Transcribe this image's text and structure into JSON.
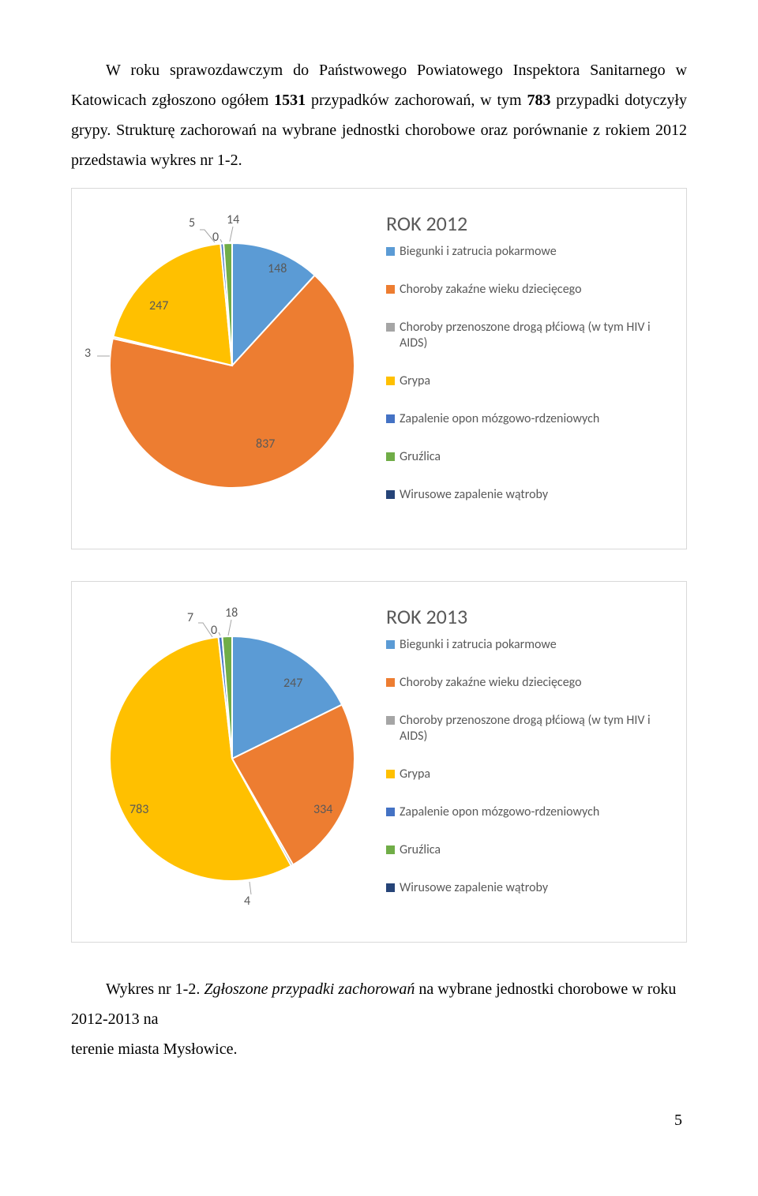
{
  "paragraph": {
    "line1a": "W roku sprawozdawczym do Państwowego Powiatowego Inspektora Sanitarnego",
    "line2a": "w Katowicach zgłoszono ogółem ",
    "bold1": "1531",
    "line2b": "  przypadków zachorowań, w tym ",
    "bold2": "783",
    "line2c": " przypadki",
    "line3": "dotyczyły grypy.  Strukturę  zachorowań na wybrane jednostki chorobowe oraz porównanie",
    "line4": "z rokiem 2012 przedstawia wykres nr 1-2."
  },
  "chart1": {
    "title": "ROK 2012",
    "type": "pie",
    "background_color": "#ffffff",
    "border_color": "#d9d9d9",
    "label_color": "#595959",
    "label_fontsize": 16,
    "title_fontsize": 26,
    "slices": [
      {
        "name": "Biegunki i zatrucia pokarmowe",
        "value": 148,
        "color": "#5b9bd5",
        "border": "#ffffff"
      },
      {
        "name": "Choroby zakaźne wieku dziecięcego",
        "value": 837,
        "color": "#ed7d31",
        "border": "#ffffff"
      },
      {
        "name": "Choroby przenoszone drogą płćiową\n(w tym HIV i AIDS)",
        "value": 3,
        "color": "#a5a5a5",
        "border": "#ffffff"
      },
      {
        "name": "Grypa",
        "value": 247,
        "color": "#ffc000",
        "border": "#ffffff"
      },
      {
        "name": "Zapalenie opon mózgowo-\nrdzeniowych",
        "value": 5,
        "color": "#4472c4",
        "border": "#ffffff"
      },
      {
        "name": "Gruźlica",
        "value": 14,
        "color": "#70ad47",
        "border": "#ffffff"
      },
      {
        "name": "Wirusowe zapalenie wątroby",
        "value": 0,
        "color": "#264478",
        "border": "#ffffff"
      }
    ],
    "legend": [
      {
        "color": "#5b9bd5",
        "label": "Biegunki i zatrucia pokarmowe"
      },
      {
        "color": "#ed7d31",
        "label": "Choroby zakaźne wieku dziecięcego"
      },
      {
        "color": "#a5a5a5",
        "label": "Choroby przenoszone drogą płćiową (w tym HIV i AIDS)"
      },
      {
        "color": "#ffc000",
        "label": "Grypa"
      },
      {
        "color": "#4472c4",
        "label": "Zapalenie opon mózgowo-rdzeniowych"
      },
      {
        "color": "#70ad47",
        "label": "Gruźlica"
      },
      {
        "color": "#264478",
        "label": "Wirusowe zapalenie wątroby"
      }
    ]
  },
  "chart2": {
    "title": "ROK 2013",
    "type": "pie",
    "background_color": "#ffffff",
    "border_color": "#d9d9d9",
    "label_color": "#595959",
    "label_fontsize": 16,
    "title_fontsize": 26,
    "slices": [
      {
        "name": "Biegunki i zatrucia pokarmowe",
        "value": 247,
        "color": "#5b9bd5",
        "border": "#ffffff"
      },
      {
        "name": "Choroby zakaźne wieku dziecięcego",
        "value": 334,
        "color": "#ed7d31",
        "border": "#ffffff"
      },
      {
        "name": "Choroby przenoszone drogą płćiową\n(w tym HIV i AIDS)",
        "value": 4,
        "color": "#a5a5a5",
        "border": "#ffffff"
      },
      {
        "name": "Grypa",
        "value": 783,
        "color": "#ffc000",
        "border": "#ffffff"
      },
      {
        "name": "Zapalenie opon mózgowo-\nrdzeniowych",
        "value": 7,
        "color": "#4472c4",
        "border": "#ffffff"
      },
      {
        "name": "Gruźlica",
        "value": 18,
        "color": "#70ad47",
        "border": "#ffffff"
      },
      {
        "name": "Wirusowe zapalenie wątroby",
        "value": 0,
        "color": "#264478",
        "border": "#ffffff"
      }
    ],
    "legend": [
      {
        "color": "#5b9bd5",
        "label": "Biegunki i zatrucia pokarmowe"
      },
      {
        "color": "#ed7d31",
        "label": "Choroby zakaźne wieku dziecięcego"
      },
      {
        "color": "#a5a5a5",
        "label": "Choroby przenoszone drogą płćiową (w tym HIV i AIDS)"
      },
      {
        "color": "#ffc000",
        "label": "Grypa"
      },
      {
        "color": "#4472c4",
        "label": "Zapalenie opon mózgowo-rdzeniowych"
      },
      {
        "color": "#70ad47",
        "label": "Gruźlica"
      },
      {
        "color": "#264478",
        "label": "Wirusowe zapalenie wątroby"
      }
    ]
  },
  "caption": {
    "prefix": "Wykres nr 1-2. ",
    "italic": "Zgłoszone przypadki zachorowań",
    "rest1": " na wybrane jednostki chorobowe w roku 2012-2013 na",
    "rest2": "terenie miasta  Mysłowic",
    "rest3": "e."
  },
  "pagenum": "5"
}
